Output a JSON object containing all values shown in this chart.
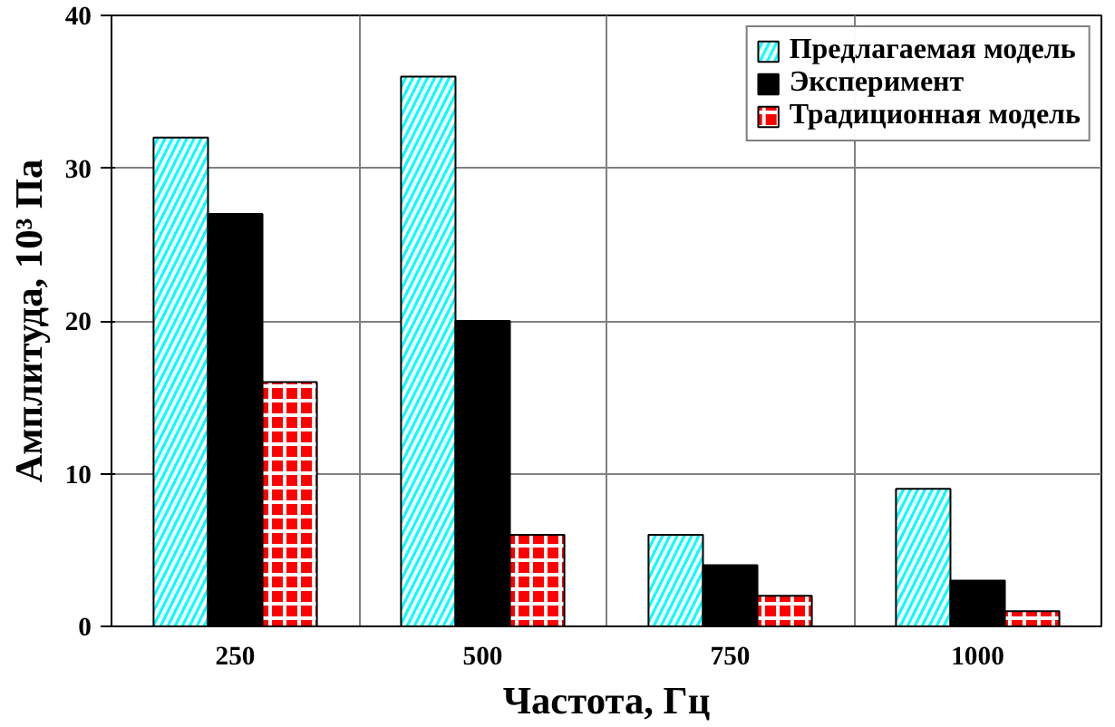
{
  "chart_data": {
    "type": "bar",
    "xlabel": "Частота, Гц",
    "ylabel": "Амплитуда, 10³ Па",
    "categories": [
      "250",
      "500",
      "750",
      "1000"
    ],
    "series": [
      {
        "name": "Предлагаемая модель",
        "color": "#00ffff",
        "values": [
          32,
          36,
          6,
          9
        ]
      },
      {
        "name": "Эксперимент",
        "color": "#000000",
        "values": [
          27,
          20,
          4,
          3
        ]
      },
      {
        "name": "Традиционная модель",
        "color": "#ff0000",
        "values": [
          16,
          6,
          2,
          1
        ]
      }
    ],
    "ylim": [
      0,
      40
    ],
    "yticks": [
      0,
      10,
      20,
      30,
      40
    ],
    "grid": true,
    "legend": "top right"
  }
}
